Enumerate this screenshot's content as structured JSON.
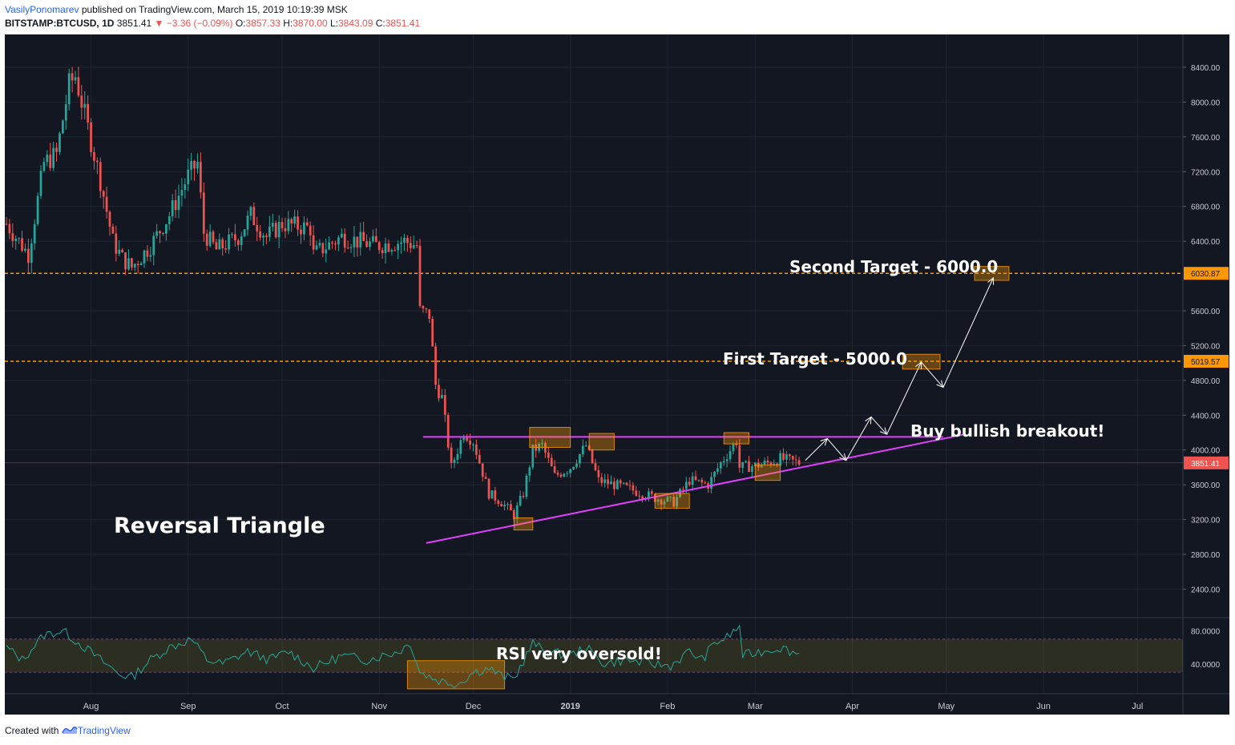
{
  "header": {
    "author": "VasilyPonomarev",
    "published": "published on TradingView.com, March 15, 2019 10:19:39 MSK",
    "symbol": "BITSTAMP:BTCUSD, 1D",
    "last": "3851.41",
    "change": "−3.36 (−0.09%)",
    "o_label": "O:",
    "o": "3857.33",
    "h_label": "H:",
    "h": "3870.00",
    "l_label": "L:",
    "l": "3843.09",
    "c_label": "C:",
    "c": "3851.41"
  },
  "footer": {
    "created": "Created with",
    "brand": "TradingView"
  },
  "colors": {
    "background": "#131722",
    "up": "#26a69a",
    "down": "#ef5350",
    "target_line": "#ff9800",
    "triangle_line": "#e040fb",
    "rsi_line": "#26a69a"
  },
  "chart_data": {
    "type": "candlestick",
    "price_axis": {
      "ticks": [
        "8400.00",
        "8000.00",
        "7600.00",
        "7200.00",
        "6800.00",
        "6400.00",
        "5600.00",
        "5200.00",
        "4800.00",
        "4400.00",
        "4000.00",
        "3600.00",
        "3200.00",
        "2800.00",
        "2400.00"
      ],
      "range": [
        2100,
        8750
      ]
    },
    "time_axis": {
      "labels": [
        "Aug",
        "Sep",
        "Oct",
        "Nov",
        "Dec",
        "2019",
        "Feb",
        "Mar",
        "Apr",
        "May",
        "Jun",
        "Jul"
      ],
      "range": [
        "2018-07-05",
        "2019-07-15"
      ]
    },
    "price_labels": {
      "second_target": "6030.87",
      "first_target": "5019.57",
      "last": "3851.41"
    },
    "levels": {
      "second_target": 6030.87,
      "first_target": 5019.57,
      "last": 3851.41,
      "resistance": 4150
    },
    "annotations": {
      "second_target": "Second Target - 6000.0",
      "first_target": "First Target - 5000.0",
      "breakout": "Buy bullish breakout!",
      "pattern": "Reversal Triangle",
      "rsi": "RSI very oversold!"
    },
    "rsi_axis": {
      "ticks": [
        "80.0000",
        "40.0000"
      ],
      "range": [
        8,
        92
      ],
      "band": [
        30,
        70
      ]
    },
    "close_keypoints": [
      [
        "2018-07-05",
        6600
      ],
      [
        "2018-07-12",
        6250
      ],
      [
        "2018-07-17",
        7300
      ],
      [
        "2018-07-21",
        7400
      ],
      [
        "2018-07-25",
        8200
      ],
      [
        "2018-07-27",
        8300
      ],
      [
        "2018-07-31",
        7700
      ],
      [
        "2018-08-04",
        7100
      ],
      [
        "2018-08-08",
        6400
      ],
      [
        "2018-08-11",
        6200
      ],
      [
        "2018-08-14",
        6100
      ],
      [
        "2018-08-20",
        6350
      ],
      [
        "2018-08-26",
        6700
      ],
      [
        "2018-09-01",
        7150
      ],
      [
        "2018-09-04",
        7300
      ],
      [
        "2018-09-06",
        6500
      ],
      [
        "2018-09-10",
        6300
      ],
      [
        "2018-09-17",
        6450
      ],
      [
        "2018-09-21",
        6700
      ],
      [
        "2018-09-26",
        6450
      ],
      [
        "2018-10-01",
        6600
      ],
      [
        "2018-10-10",
        6550
      ],
      [
        "2018-10-11",
        6250
      ],
      [
        "2018-10-20",
        6450
      ],
      [
        "2018-10-31",
        6350
      ],
      [
        "2018-11-09",
        6400
      ],
      [
        "2018-11-13",
        6350
      ],
      [
        "2018-11-14",
        5600
      ],
      [
        "2018-11-17",
        5550
      ],
      [
        "2018-11-19",
        4750
      ],
      [
        "2018-11-21",
        4600
      ],
      [
        "2018-11-24",
        3800
      ],
      [
        "2018-11-26",
        4000
      ],
      [
        "2018-11-28",
        4200
      ],
      [
        "2018-12-01",
        4100
      ],
      [
        "2018-12-06",
        3500
      ],
      [
        "2018-12-10",
        3400
      ],
      [
        "2018-12-14",
        3250
      ],
      [
        "2018-12-17",
        3500
      ],
      [
        "2018-12-20",
        4000
      ],
      [
        "2018-12-23",
        4050
      ],
      [
        "2018-12-27",
        3700
      ],
      [
        "2019-01-01",
        3800
      ],
      [
        "2019-01-06",
        4050
      ],
      [
        "2019-01-10",
        3650
      ],
      [
        "2019-01-15",
        3600
      ],
      [
        "2019-01-20",
        3550
      ],
      [
        "2019-01-28",
        3450
      ],
      [
        "2019-02-03",
        3400
      ],
      [
        "2019-02-08",
        3650
      ],
      [
        "2019-02-14",
        3600
      ],
      [
        "2019-02-18",
        3850
      ],
      [
        "2019-02-23",
        4100
      ],
      [
        "2019-02-24",
        3800
      ],
      [
        "2019-03-01",
        3820
      ],
      [
        "2019-03-05",
        3850
      ],
      [
        "2019-03-09",
        3900
      ],
      [
        "2019-03-15",
        3851
      ]
    ],
    "rsi_keypoints": [
      [
        "2018-07-05",
        60
      ],
      [
        "2018-07-10",
        45
      ],
      [
        "2018-07-17",
        75
      ],
      [
        "2018-07-23",
        80
      ],
      [
        "2018-07-30",
        60
      ],
      [
        "2018-08-04",
        45
      ],
      [
        "2018-08-10",
        28
      ],
      [
        "2018-08-14",
        24
      ],
      [
        "2018-08-20",
        45
      ],
      [
        "2018-08-26",
        60
      ],
      [
        "2018-09-02",
        70
      ],
      [
        "2018-09-07",
        45
      ],
      [
        "2018-09-12",
        40
      ],
      [
        "2018-09-20",
        55
      ],
      [
        "2018-09-27",
        45
      ],
      [
        "2018-10-03",
        55
      ],
      [
        "2018-10-11",
        35
      ],
      [
        "2018-10-20",
        50
      ],
      [
        "2018-10-28",
        45
      ],
      [
        "2018-11-07",
        55
      ],
      [
        "2018-11-11",
        65
      ],
      [
        "2018-11-14",
        30
      ],
      [
        "2018-11-20",
        20
      ],
      [
        "2018-11-26",
        16
      ],
      [
        "2018-12-01",
        30
      ],
      [
        "2018-12-06",
        35
      ],
      [
        "2018-12-10",
        25
      ],
      [
        "2018-12-14",
        22
      ],
      [
        "2018-12-20",
        65
      ],
      [
        "2018-12-24",
        55
      ],
      [
        "2019-01-01",
        50
      ],
      [
        "2019-01-06",
        60
      ],
      [
        "2019-01-12",
        40
      ],
      [
        "2019-01-18",
        45
      ],
      [
        "2019-01-27",
        40
      ],
      [
        "2019-02-02",
        38
      ],
      [
        "2019-02-08",
        55
      ],
      [
        "2019-02-12",
        45
      ],
      [
        "2019-02-16",
        65
      ],
      [
        "2019-02-20",
        72
      ],
      [
        "2019-02-24",
        85
      ],
      [
        "2019-02-25",
        50
      ],
      [
        "2019-03-03",
        55
      ],
      [
        "2019-03-09",
        60
      ],
      [
        "2019-03-15",
        52
      ]
    ]
  }
}
